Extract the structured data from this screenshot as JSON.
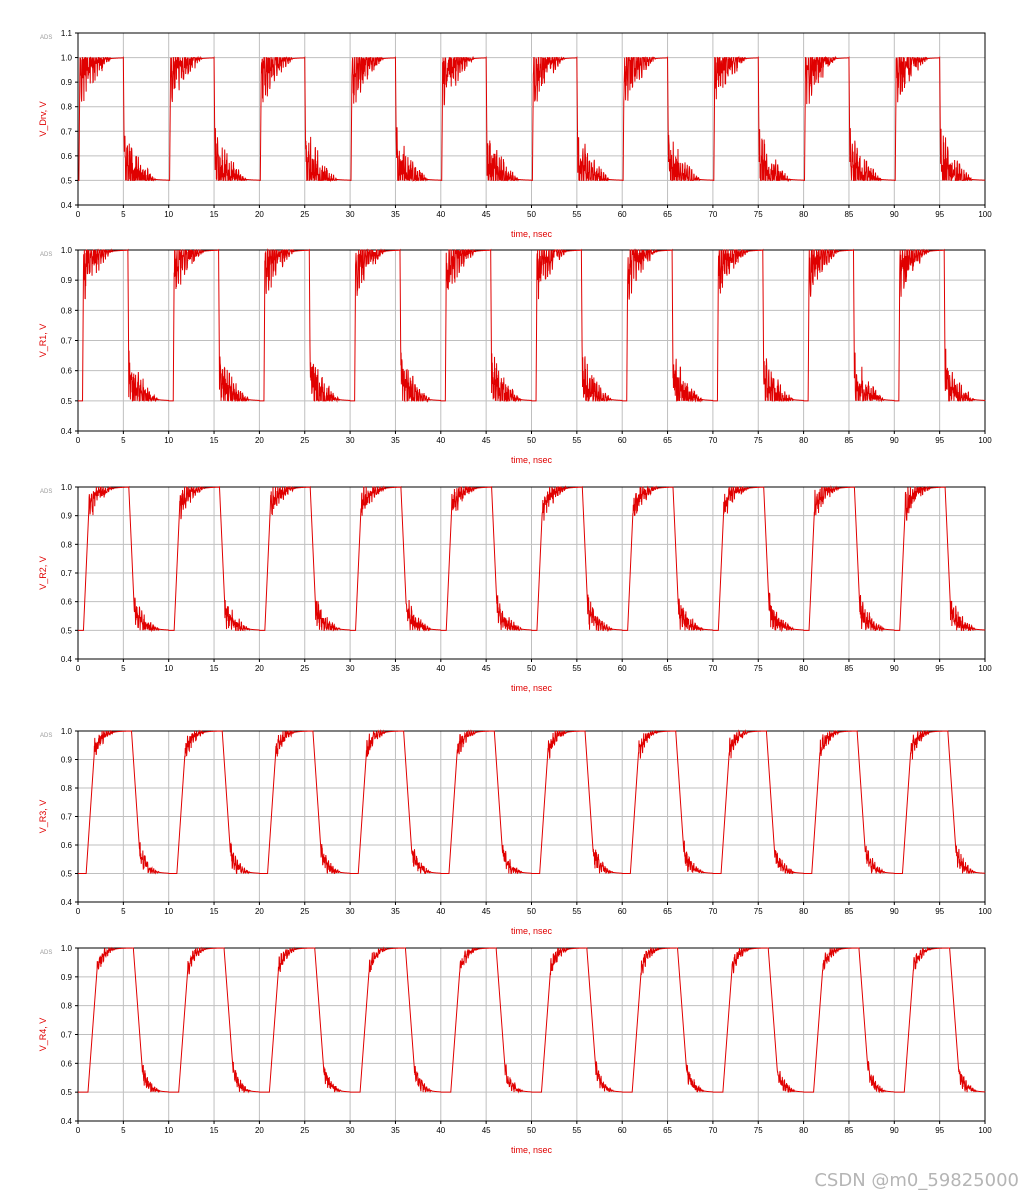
{
  "colors": {
    "trace": "#e00000",
    "label": "#e00000",
    "grid": "#bfbfbf",
    "axis": "#000000",
    "tick_text": "#000000",
    "ads_tag": "#9a9a9a"
  },
  "watermark": "CSDN @m0_59825000",
  "chart_data": [
    {
      "type": "line",
      "ads_tag": "ADS",
      "title": "",
      "xlabel": "time, nsec",
      "ylabel": "V_Drv, V",
      "xlim": [
        0,
        100
      ],
      "ylim": [
        0.4,
        1.1
      ],
      "xticks": [
        0,
        5,
        10,
        15,
        20,
        25,
        30,
        35,
        40,
        45,
        50,
        55,
        60,
        65,
        70,
        75,
        80,
        85,
        90,
        95,
        100
      ],
      "yticks": [
        0.4,
        0.5,
        0.6,
        0.7,
        0.8,
        0.9,
        1.0,
        1.1
      ],
      "grid": true,
      "waveform": {
        "period_ns": 10,
        "low": 0.5,
        "high": 1.0,
        "rise_at_ns": 0.1,
        "fall_at_ns": 5.0,
        "edge_ns": 0.1,
        "settle_ns": 3.5,
        "ringing": 0.1
      },
      "series": [
        {
          "values_note": ""
        }
      ]
    },
    {
      "type": "line",
      "ads_tag": "ADS",
      "title": "",
      "xlabel": "time, nsec",
      "ylabel": "V_R1, V",
      "xlim": [
        0,
        100
      ],
      "ylim": [
        0.4,
        1.0
      ],
      "xticks": [
        0,
        5,
        10,
        15,
        20,
        25,
        30,
        35,
        40,
        45,
        50,
        55,
        60,
        65,
        70,
        75,
        80,
        85,
        90,
        95,
        100
      ],
      "yticks": [
        0.4,
        0.5,
        0.6,
        0.7,
        0.8,
        0.9,
        1.0
      ],
      "grid": true,
      "waveform": {
        "period_ns": 10,
        "low": 0.5,
        "high": 1.0,
        "rise_at_ns": 0.5,
        "fall_at_ns": 5.5,
        "edge_ns": 0.1,
        "settle_ns": 3.3,
        "ringing": 0.07
      },
      "series": [
        {
          "values_note": ""
        }
      ]
    },
    {
      "type": "line",
      "ads_tag": "ADS",
      "title": "",
      "xlabel": "time, nsec",
      "ylabel": "V_R2, V",
      "xlim": [
        0,
        100
      ],
      "ylim": [
        0.4,
        1.0
      ],
      "xticks": [
        0,
        5,
        10,
        15,
        20,
        25,
        30,
        35,
        40,
        45,
        50,
        55,
        60,
        65,
        70,
        75,
        80,
        85,
        90,
        95,
        100
      ],
      "yticks": [
        0.4,
        0.5,
        0.6,
        0.7,
        0.8,
        0.9,
        1.0
      ],
      "grid": true,
      "waveform": {
        "period_ns": 10,
        "low": 0.5,
        "high": 1.0,
        "rise_at_ns": 0.6,
        "fall_at_ns": 5.6,
        "edge_ns": 0.6,
        "settle_ns": 2.8,
        "ringing": 0.04
      },
      "series": [
        {
          "values_note": ""
        }
      ]
    },
    {
      "type": "line",
      "ads_tag": "ADS",
      "title": "",
      "xlabel": "time, nsec",
      "ylabel": "V_R3, V",
      "xlim": [
        0,
        100
      ],
      "ylim": [
        0.4,
        1.0
      ],
      "xticks": [
        0,
        5,
        10,
        15,
        20,
        25,
        30,
        35,
        40,
        45,
        50,
        55,
        60,
        65,
        70,
        75,
        80,
        85,
        90,
        95,
        100
      ],
      "yticks": [
        0.4,
        0.5,
        0.6,
        0.7,
        0.8,
        0.9,
        1.0
      ],
      "grid": true,
      "waveform": {
        "period_ns": 10,
        "low": 0.5,
        "high": 1.0,
        "rise_at_ns": 0.9,
        "fall_at_ns": 5.9,
        "edge_ns": 0.9,
        "settle_ns": 2.2,
        "ringing": 0.03
      },
      "series": [
        {
          "values_note": ""
        }
      ]
    },
    {
      "type": "line",
      "ads_tag": "ADS",
      "title": "",
      "xlabel": "time, nsec",
      "ylabel": "V_R4, V",
      "xlim": [
        0,
        100
      ],
      "ylim": [
        0.4,
        1.0
      ],
      "xticks": [
        0,
        5,
        10,
        15,
        20,
        25,
        30,
        35,
        40,
        45,
        50,
        55,
        60,
        65,
        70,
        75,
        80,
        85,
        90,
        95,
        100
      ],
      "yticks": [
        0.4,
        0.5,
        0.6,
        0.7,
        0.8,
        0.9,
        1.0
      ],
      "grid": true,
      "waveform": {
        "period_ns": 10,
        "low": 0.5,
        "high": 1.0,
        "rise_at_ns": 1.1,
        "fall_at_ns": 6.1,
        "edge_ns": 1.0,
        "settle_ns": 2.0,
        "ringing": 0.025
      },
      "series": [
        {
          "values_note": ""
        }
      ]
    }
  ]
}
